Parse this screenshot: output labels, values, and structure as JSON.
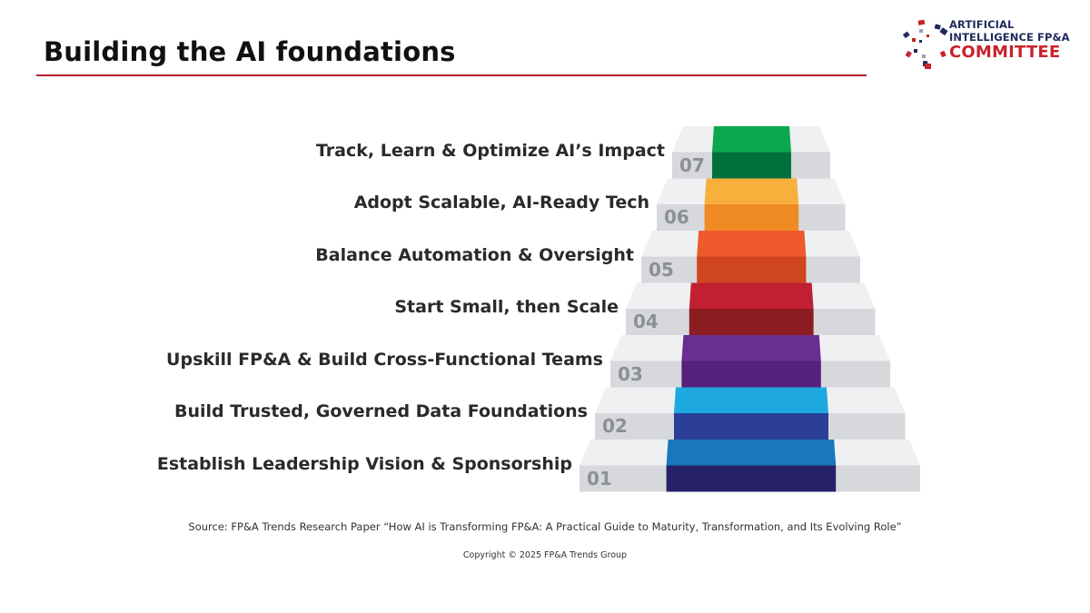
{
  "header": {
    "title": "Building the AI foundations"
  },
  "logo": {
    "line1": "ARTIFICIAL",
    "line2": "INTELLIGENCE FP&A",
    "line3": "COMMITTEE",
    "colors": {
      "navy": "#1f2a5c",
      "red": "#c8232c"
    }
  },
  "steps": [
    {
      "num": "07",
      "label": "Track, Learn & Optimize AI’s Impact",
      "top_color": "#0aa94f",
      "front_color": "#00703c"
    },
    {
      "num": "06",
      "label": "Adopt Scalable, AI-Ready Tech",
      "top_color": "#f7b03c",
      "front_color": "#f08a24"
    },
    {
      "num": "05",
      "label": "Balance Automation & Oversight",
      "top_color": "#ee5a2c",
      "front_color": "#cf4520"
    },
    {
      "num": "04",
      "label": "Start Small, then Scale",
      "top_color": "#c21f33",
      "front_color": "#8a1c22"
    },
    {
      "num": "03",
      "label": "Upskill FP&A & Build Cross-Functional Teams",
      "top_color": "#6a2d91",
      "front_color": "#55217a"
    },
    {
      "num": "02",
      "label": "Build Trusted, Governed Data Foundations",
      "top_color": "#1ea8e0",
      "front_color": "#2b3f97"
    },
    {
      "num": "01",
      "label": "Establish Leadership Vision & Sponsorship",
      "top_color": "#1877bd",
      "front_color": "#27216a"
    }
  ],
  "footer": {
    "source": "Source: FP&A Trends Research Paper “How AI is Transforming FP&A: A Practical Guide to Maturity, Transformation, and Its Evolving Role”",
    "copyright": "Copyright © 2025 FP&A Trends Group"
  }
}
